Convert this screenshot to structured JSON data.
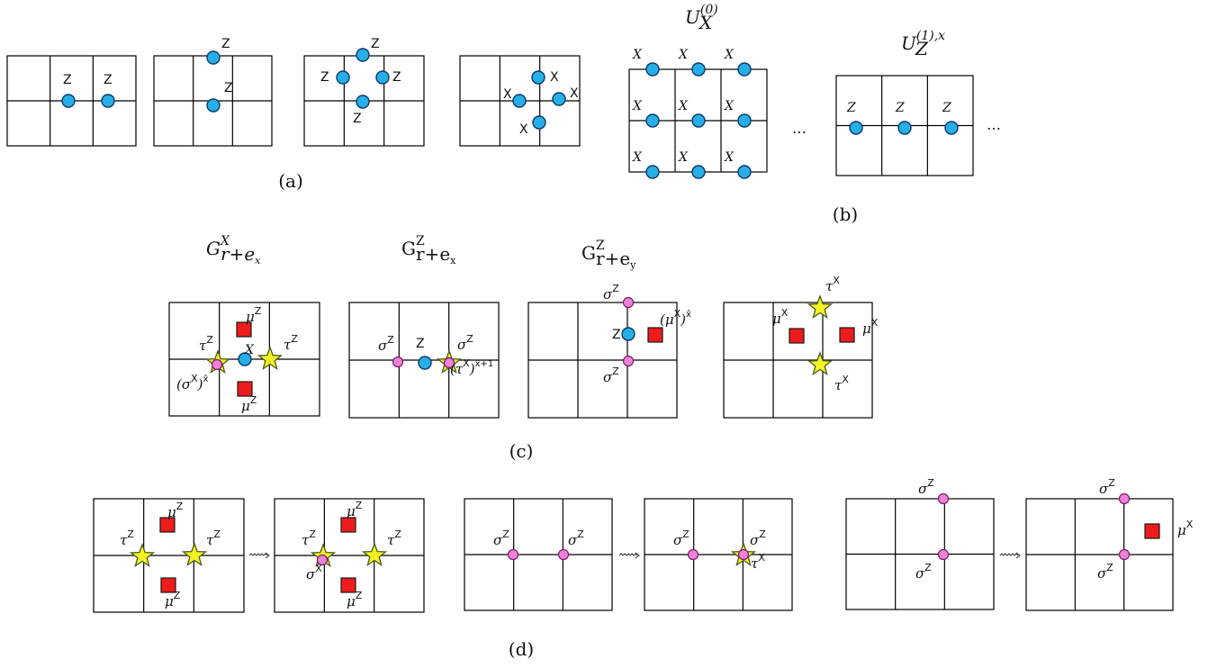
{
  "captions": {
    "a": "(a)",
    "b": "(b)",
    "c": "(c)",
    "d": "(d)"
  },
  "ellipsis": "…",
  "ops": {
    "Z": "Z",
    "X": "X",
    "sigma": "σ",
    "tau": "τ",
    "mu": "μ"
  },
  "headers": {
    "b1": {
      "base": "U",
      "sub": "X",
      "sup": "(0)"
    },
    "b2": {
      "base": "U",
      "sub": "Z",
      "sup": "(1),x"
    },
    "c1": {
      "base": "G",
      "sub": "r+e",
      "subsub": "x",
      "sup": "X"
    },
    "c2": {
      "base": "G",
      "sub": "r+e",
      "subsub": "x",
      "sup": "Z"
    },
    "c3": {
      "base": "G",
      "sub": "r+e",
      "subsub": "y",
      "sup": "Z"
    }
  },
  "exponents": {
    "x_hat": "x̂",
    "x_hat_plus_1": "x̂+1"
  }
}
